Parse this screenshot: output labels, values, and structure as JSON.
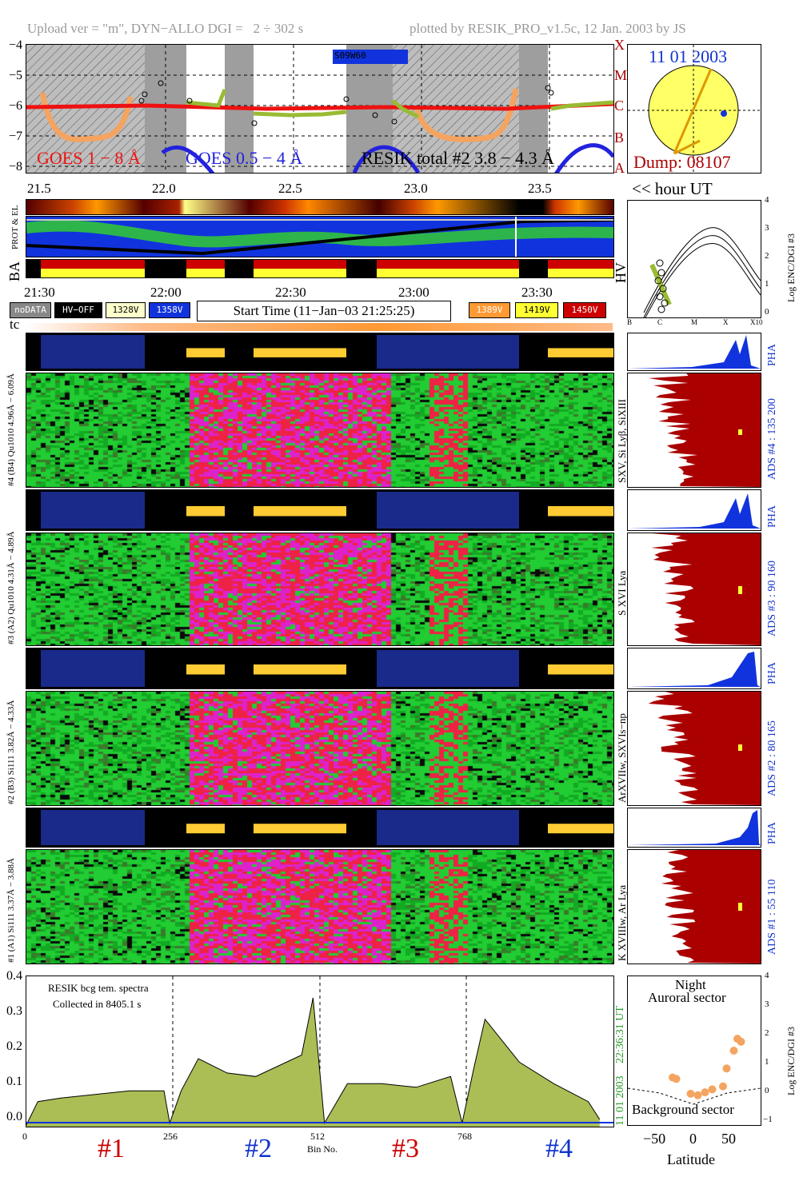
{
  "header": {
    "left": "Upload ver = \"m\", DYN−ALLO DGI =   2 ÷ 302 s",
    "right": "plotted by RESIK_PRO_v1.5c, 12 Jan. 2003 by JS"
  },
  "goes_panel": {
    "y_ticks": [
      "−4",
      "−5",
      "−6",
      "−7",
      "−8"
    ],
    "class_labels": [
      "X",
      "M",
      "C",
      "B",
      "A"
    ],
    "sat_label": "S09W60",
    "legend_goes1": "GOES 1 − 8 Å",
    "legend_goes2": "GOES 0.5 − 4 Å",
    "legend_resik": "RESIK total #2  3.8 − 4.3 Å",
    "x_ticks": [
      "21.5",
      "22.0",
      "22.5",
      "23.0",
      "23.5"
    ],
    "hour_label": "<< hour UT"
  },
  "sun_panel": {
    "date": "11 01 2003",
    "dump": "Dump: 08107"
  },
  "status_strips": {
    "prot_label": "PROT & EL",
    "ba_label": "BA",
    "hv_label": "HV",
    "time_ticks": [
      "21:30",
      "22:00",
      "22:30",
      "23:00",
      "23:30"
    ],
    "legend": [
      "noDATA",
      "HV−OFF",
      "1328V",
      "1358V",
      "1389V",
      "1419V",
      "1450V"
    ],
    "start_time": "Start Time (11−Jan−03 21:25:25)",
    "tc_label": "tc"
  },
  "orbit_panel": {
    "x_ticks": [
      "B",
      "C",
      "M",
      "X",
      "X10"
    ],
    "y_ticks": [
      "4",
      "3",
      "2",
      "1",
      "0"
    ],
    "ylabel": "Log ENC/DGI #3"
  },
  "channels": [
    {
      "pha_label": "#4 (B4) Qu1010 4.96Å − 6.09Å",
      "heat_label": "",
      "side_label": "SXV, Si Lyβ, SiXIII",
      "ads_label": "ADS #4 :  135 200"
    },
    {
      "pha_label": "#3 (A2) Qu1010 4.31Å − 4.89Å",
      "heat_label": "",
      "side_label": "S XVI Lya",
      "ads_label": "ADS #3 :   90 160"
    },
    {
      "pha_label": "#2 (B3) Si111 3.82Å − 4.33Å",
      "heat_label": "",
      "side_label": "ArXVIIw, SXVIs−np",
      "ads_label": "ADS #2 :   80 165"
    },
    {
      "pha_label": "#1 (A1) Si111 3.37Å − 3.88Å",
      "heat_label": "",
      "side_label": "K XVIIIw, Ar Lya",
      "ads_label": "ADS #1 :   55 110"
    }
  ],
  "pha_word": "PHA",
  "spectrum": {
    "y_ticks": [
      "0.4",
      "0.3",
      "0.2",
      "0.1",
      "0.0"
    ],
    "x_ticks": [
      "0",
      "256",
      "512",
      "768"
    ],
    "xlabel": "Bin No.",
    "note1": "RESIK bcg tem. spectra",
    "note2": "Collected in  8405.1 s",
    "side_date": "11 01 2003",
    "side_time": "22:36:31 UT",
    "channel_labels": [
      "#1",
      "#2",
      "#3",
      "#4"
    ]
  },
  "latitude_panel": {
    "title1": "Night",
    "title2": "Auroral sector",
    "bottom": "Background sector",
    "x_ticks": [
      "−50",
      "0",
      "50"
    ],
    "xlabel": "Latitude",
    "y_ticks": [
      "4",
      "3",
      "2",
      "1",
      "0",
      "−1"
    ],
    "ylabel": "Log ENC/DGI #3"
  },
  "chart_data": {
    "type": "line",
    "title": "",
    "goes_log_flux_series": [
      {
        "name": "GOES 1 − 8 Å",
        "color": "#ee1111",
        "x_hour": [
          21.4,
          21.8,
          22.2,
          22.6,
          23.0,
          23.4,
          23.7
        ],
        "y": [
          -6.0,
          -5.95,
          -6.0,
          -6.05,
          -6.0,
          -6.0,
          -5.9
        ]
      },
      {
        "name": "RESIK total #2  3.8 − 4.3 Å",
        "color": "#99bb33",
        "x_hour": [
          22.05,
          22.2,
          22.35,
          22.5,
          22.7,
          23.3,
          23.45,
          23.7
        ],
        "y": [
          -5.8,
          -5.9,
          -6.3,
          -6.25,
          -6.15,
          -6.2,
          -5.9,
          -5.8
        ]
      }
    ],
    "goes_ylim": [
      -8,
      -4
    ],
    "goes_xlim": [
      21.4,
      23.7
    ],
    "spectrum_series": {
      "x_bins": [
        0,
        20,
        60,
        120,
        180,
        240,
        250,
        270,
        300,
        350,
        400,
        480,
        500,
        520,
        560,
        620,
        680,
        740,
        760,
        780,
        800,
        860,
        920,
        980,
        1000
      ],
      "y": [
        0.005,
        0.07,
        0.08,
        0.09,
        0.1,
        0.1,
        0.01,
        0.1,
        0.19,
        0.15,
        0.14,
        0.2,
        0.36,
        0.01,
        0.12,
        0.12,
        0.11,
        0.14,
        0.01,
        0.16,
        0.3,
        0.18,
        0.12,
        0.07,
        0.02
      ]
    },
    "spectrum_ylim": [
      0,
      0.42
    ],
    "spectrum_xlim": [
      0,
      1024
    ],
    "latitude_points": {
      "lat": [
        -30,
        -25,
        -5,
        5,
        15,
        25,
        40,
        45,
        55,
        60,
        65
      ],
      "log_enc": [
        0.6,
        0.55,
        0.05,
        0.0,
        0.1,
        0.2,
        0.3,
        0.9,
        1.5,
        1.9,
        1.8
      ]
    },
    "latitude_ylim": [
      -1,
      4
    ]
  },
  "colors": {
    "goes1": "#ee1111",
    "goes2": "#2222dd",
    "resik": "#99bb33",
    "spectrum_fill": "#aabe55",
    "pha_fill": "#1133dd",
    "ads_fill": "#aa0000",
    "label_red": "#cc0000",
    "label_blue": "#1133cc",
    "v1328": "#ffffcc",
    "v1358": "#1133dd",
    "v1389": "#ff9933",
    "v1419": "#ffff33",
    "v1450": "#cc0000"
  }
}
